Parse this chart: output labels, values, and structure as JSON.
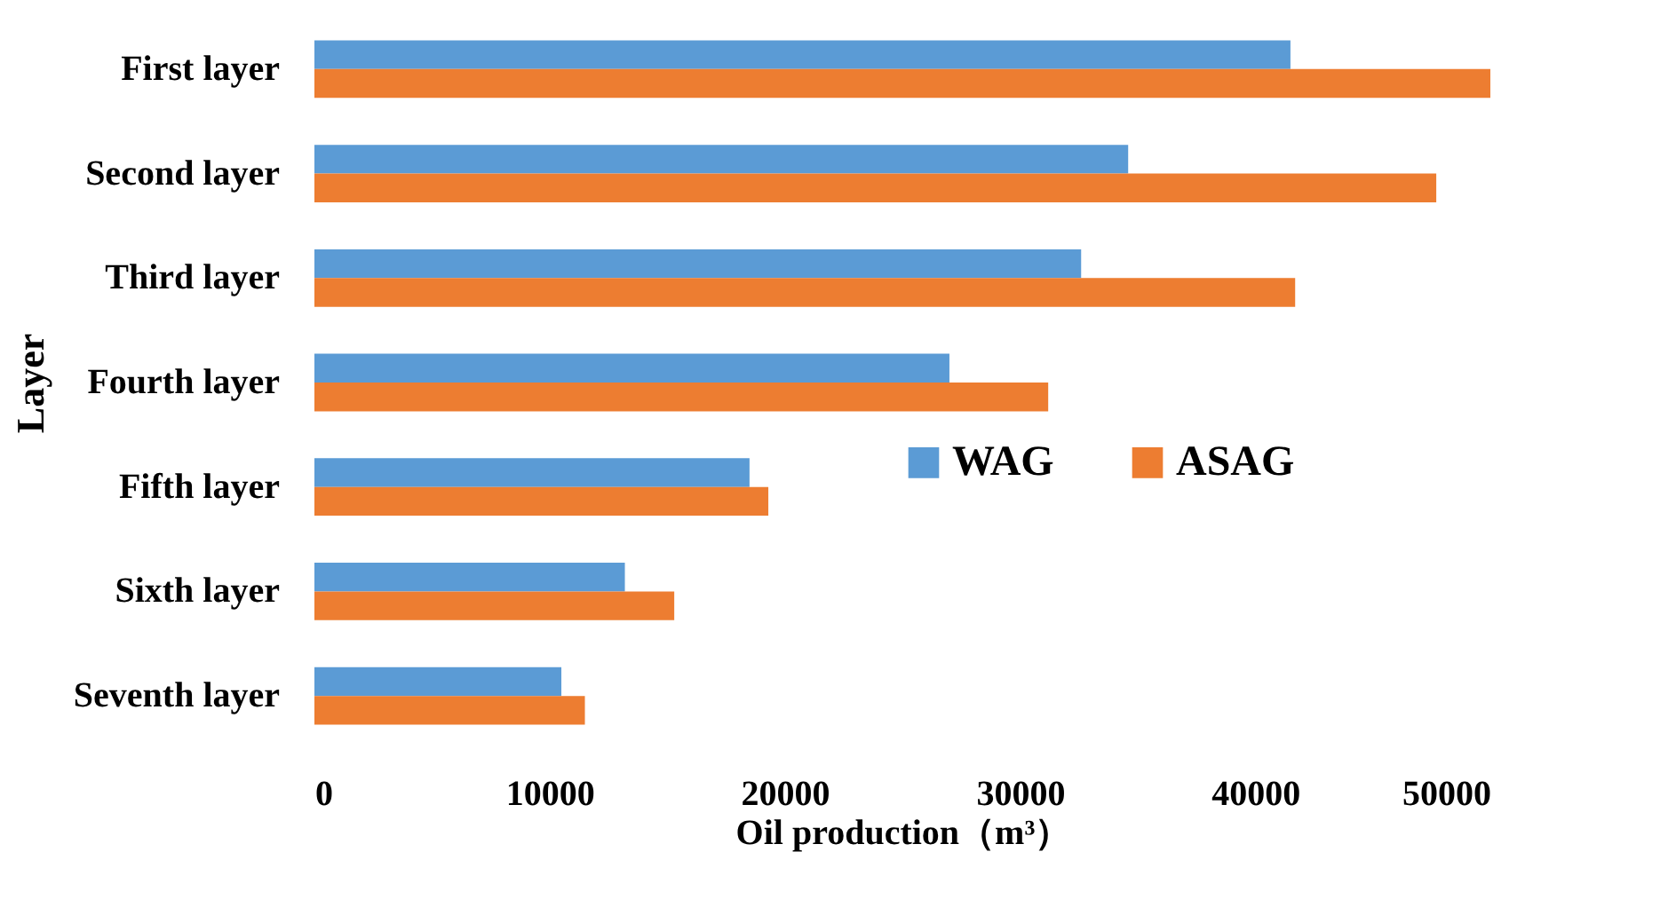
{
  "chart_data": {
    "type": "bar",
    "orientation": "horizontal",
    "xlabel": "Oil production（m³）",
    "ylabel": "Layer",
    "categories": [
      "First layer",
      "Second layer",
      "Third layer",
      "Fourth layer",
      "Fifth layer",
      "Sixth layer",
      "Seventh layer"
    ],
    "series": [
      {
        "name": "WAG",
        "color": "#5b9bd5",
        "values": [
          41500,
          34600,
          32600,
          27000,
          18500,
          13200,
          10500
        ]
      },
      {
        "name": "ASAG",
        "color": "#ed7d31",
        "values": [
          50000,
          47700,
          41700,
          31200,
          19300,
          15300,
          11500
        ]
      }
    ],
    "xlim": [
      0,
      50000
    ],
    "xticks": [
      0,
      10000,
      20000,
      30000,
      40000,
      50000
    ],
    "grid": false,
    "legend": "right"
  }
}
